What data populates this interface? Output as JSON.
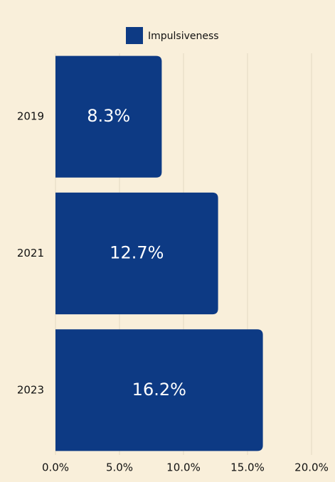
{
  "chart_data": {
    "type": "barh",
    "legend": "top",
    "series": [
      {
        "name": "Impulsiveness",
        "color": "#0d3a84",
        "values": [
          8.3,
          12.7,
          16.2
        ],
        "value_labels": [
          "8.3%",
          "12.7%",
          "16.2%"
        ]
      }
    ],
    "categories": [
      "2019",
      "2021",
      "2023"
    ],
    "xlim": [
      0,
      20
    ],
    "xticks": [
      {
        "value": 0,
        "label": "0.0%"
      },
      {
        "value": 5,
        "label": "5.0%"
      },
      {
        "value": 10,
        "label": "10.0%"
      },
      {
        "value": 15,
        "label": "15.0%"
      },
      {
        "value": 20,
        "label": "20.0%"
      }
    ],
    "grid": true
  }
}
